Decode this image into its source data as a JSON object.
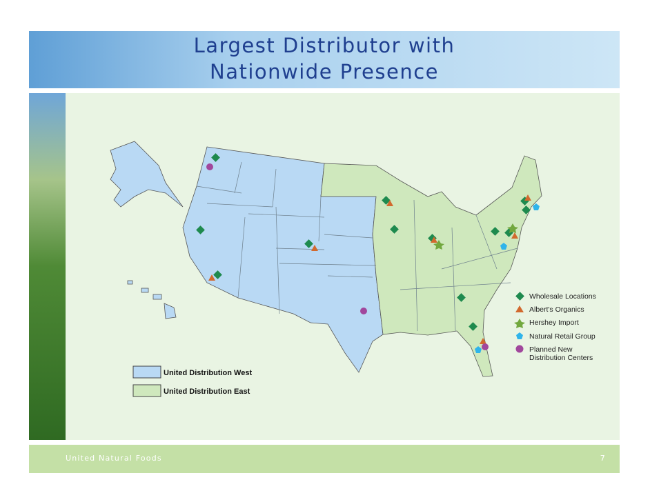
{
  "header": {
    "title_lines": [
      "Largest Distributor with",
      "Nationwide Presence"
    ]
  },
  "map": {
    "legend": [
      "Wholesale Locations",
      "Albert's Organics",
      "Hershey Import",
      "Natural Retail Group",
      "Planned New",
      "Distribution Centers"
    ],
    "regions": [
      "United Distribution West",
      "United Distribution East"
    ]
  },
  "footer": {
    "company": "United Natural Foods",
    "page": "7"
  }
}
